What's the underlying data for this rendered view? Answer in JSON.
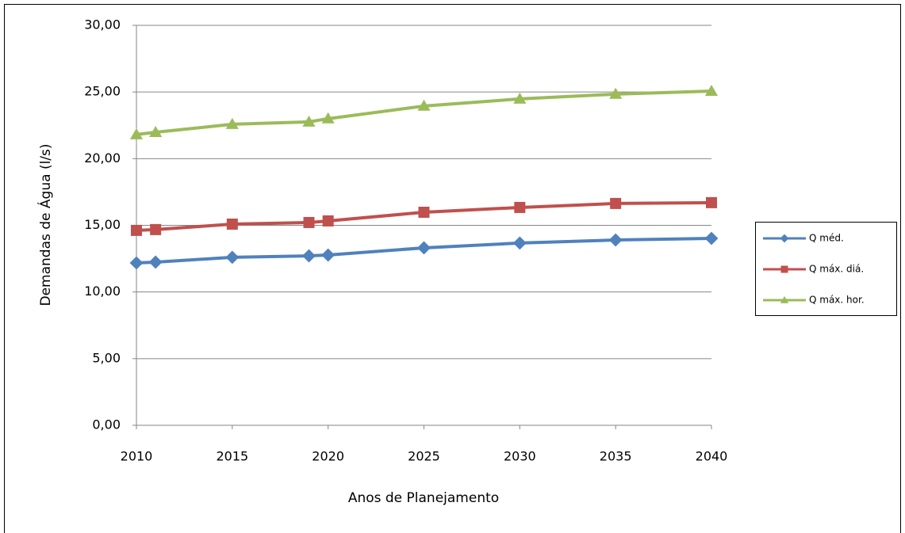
{
  "chart_data": {
    "type": "line",
    "x_label": "Anos de Planejamento",
    "y_label": "Demandas de Água (l/s)",
    "x": [
      2010,
      2011,
      2015,
      2019,
      2020,
      2025,
      2030,
      2035,
      2040
    ],
    "series": [
      {
        "name": "Q méd.",
        "color": "#4f81bd",
        "marker": "diamond",
        "values": [
          12.18,
          12.24,
          12.6,
          12.71,
          12.77,
          13.31,
          13.67,
          13.9,
          14.02
        ]
      },
      {
        "name": "Q máx. diá.",
        "color": "#c0504d",
        "marker": "square",
        "values": [
          14.62,
          14.68,
          15.09,
          15.21,
          15.33,
          15.98,
          16.34,
          16.64,
          16.7
        ]
      },
      {
        "name": "Q máx. hor.",
        "color": "#9bbb59",
        "marker": "triangle",
        "values": [
          21.81,
          21.98,
          22.58,
          22.76,
          23.0,
          23.95,
          24.48,
          24.84,
          25.07
        ]
      }
    ],
    "xlim": [
      2010,
      2040
    ],
    "xticks": [
      2010,
      2015,
      2020,
      2025,
      2030,
      2035,
      2040
    ],
    "ylim": [
      0,
      30
    ],
    "yticks": [
      {
        "value": 0,
        "label": "0,00"
      },
      {
        "value": 5,
        "label": "5,00"
      },
      {
        "value": 10,
        "label": "10,00"
      },
      {
        "value": 15,
        "label": "15,00"
      },
      {
        "value": 20,
        "label": "20,00"
      },
      {
        "value": 25,
        "label": "25,00"
      },
      {
        "value": 30,
        "label": "30,00"
      }
    ],
    "grid": true,
    "legend": "right"
  }
}
